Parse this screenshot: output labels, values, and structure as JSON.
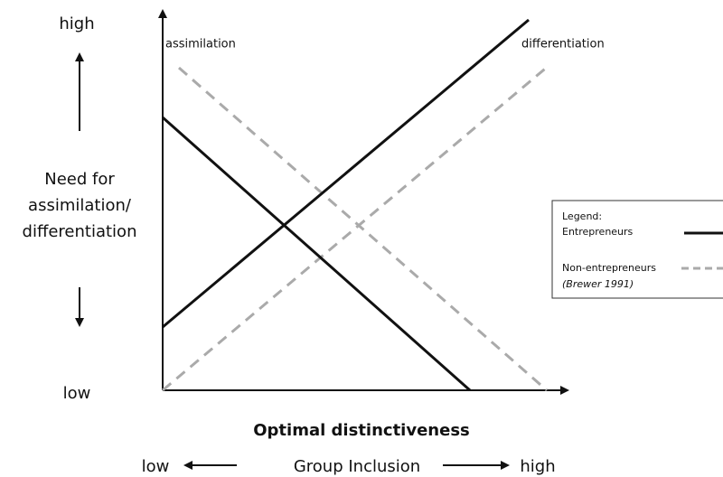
{
  "axis_left": {
    "high": "high",
    "label": [
      "Need for",
      "assimilation/",
      "differentiation"
    ],
    "low": "low"
  },
  "lines": {
    "assimilation": "assimilation",
    "differentiation": "differentiation"
  },
  "legend": {
    "title": "Legend:",
    "entrepreneurs": "Entrepreneurs",
    "non_entrepreneurs": "Non-entrepreneurs",
    "citation": "(Brewer 1991)"
  },
  "x_axis": {
    "title": "Optimal distinctiveness",
    "low": "low",
    "label": "Group Inclusion",
    "high": "high"
  }
}
